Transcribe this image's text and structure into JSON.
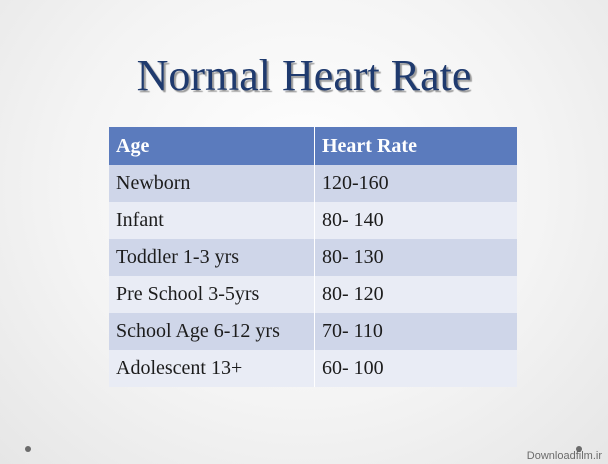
{
  "slide": {
    "title": "Normal Heart Rate"
  },
  "table": {
    "headers": {
      "age": "Age",
      "heart_rate": "Heart Rate"
    },
    "rows": [
      {
        "age": "Newborn",
        "heart_rate": "120-160"
      },
      {
        "age": "Infant",
        "heart_rate": "80- 140"
      },
      {
        "age": "Toddler 1-3 yrs",
        "heart_rate": "80- 130"
      },
      {
        "age": "Pre School 3-5yrs",
        "heart_rate": "80- 120"
      },
      {
        "age": "School Age 6-12 yrs",
        "heart_rate": "70- 110"
      },
      {
        "age": "Adolescent 13+",
        "heart_rate": "60- 100"
      }
    ]
  },
  "watermark": "Downloadfilm.ir",
  "colors": {
    "title": "#1f3a6e",
    "header_bg": "#5b7bbd",
    "row_odd": "#cfd6e9",
    "row_even": "#e9ecf5"
  }
}
